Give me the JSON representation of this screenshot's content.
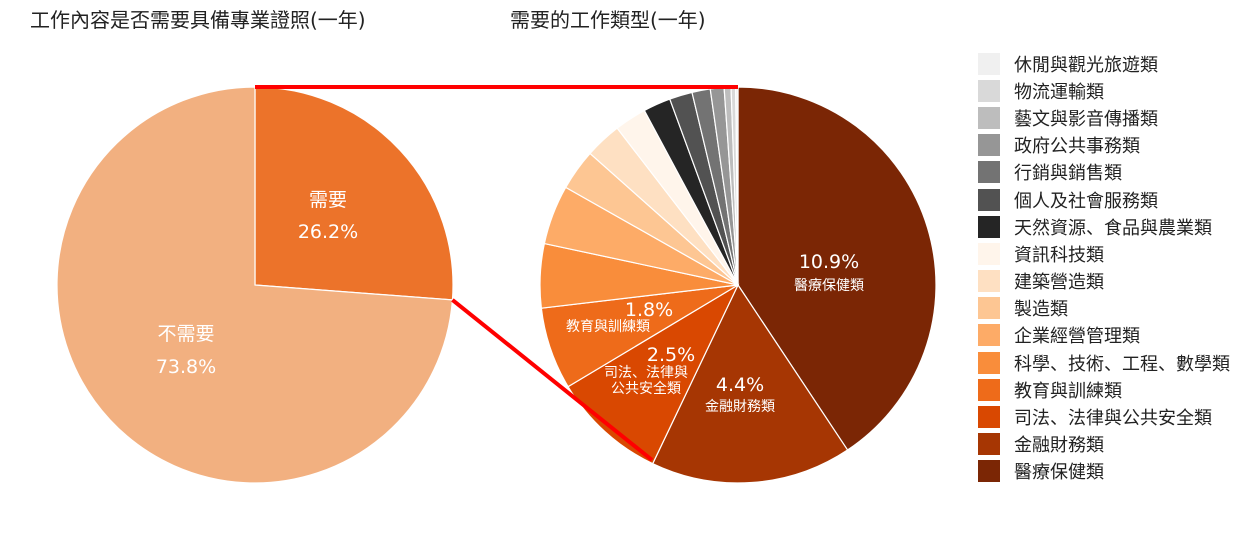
{
  "chart_data": [
    {
      "type": "pie",
      "title": "工作內容是否需要具備專業證照(一年)",
      "slices": [
        {
          "label": "需要",
          "value": 26.2,
          "value_text": "26.2%",
          "color": "#ec732a"
        },
        {
          "label": "不需要",
          "value": 73.8,
          "value_text": "73.8%",
          "color": "#f2b080"
        }
      ]
    },
    {
      "type": "pie",
      "title": "需要的工作類型(一年)",
      "slices": [
        {
          "label": "醫療保健類",
          "value": 10.9,
          "value_text": "10.9%",
          "color": "#7b2605"
        },
        {
          "label": "金融財務類",
          "value": 4.4,
          "value_text": "4.4%",
          "color": "#a63603"
        },
        {
          "label": "司法、法律與公共安全類",
          "value": 2.5,
          "value_text": "2.5%",
          "color": "#d94801"
        },
        {
          "label": "教育與訓練類",
          "value": 1.8,
          "value_text": "1.8%",
          "color": "#ee6b1a"
        },
        {
          "label": "科學、技術、工程、數學類",
          "value": 1.4,
          "color": "#f98d3b"
        },
        {
          "label": "企業經營管理類",
          "value": 1.3,
          "color": "#fdab67"
        },
        {
          "label": "製造類",
          "value": 0.9,
          "color": "#fdc693"
        },
        {
          "label": "建築營造類",
          "value": 0.8,
          "color": "#fee0c2"
        },
        {
          "label": "資訊科技類",
          "value": 0.7,
          "color": "#fff5eb"
        },
        {
          "label": "天然資源、食品與農業類",
          "value": 0.6,
          "color": "#252525"
        },
        {
          "label": "個人及社會服務類",
          "value": 0.5,
          "color": "#525252"
        },
        {
          "label": "行銷與銷售類",
          "value": 0.4,
          "color": "#737373"
        },
        {
          "label": "政府公共事務類",
          "value": 0.3,
          "color": "#969696"
        },
        {
          "label": "藝文與影音傳播類",
          "value": 0.15,
          "color": "#bdbdbd"
        },
        {
          "label": "物流運輸類",
          "value": 0.1,
          "color": "#d9d9d9"
        },
        {
          "label": "休閒與觀光旅遊類",
          "value": 0.05,
          "color": "#f0f0f0"
        }
      ]
    }
  ],
  "legend_order": [
    "休閒與觀光旅遊類",
    "物流運輸類",
    "藝文與影音傳播類",
    "政府公共事務類",
    "行銷與銷售類",
    "個人及社會服務類",
    "天然資源、食品與農業類",
    "資訊科技類",
    "建築營造類",
    "製造類",
    "企業經營管理類",
    "科學、技術、工程、數學類",
    "教育與訓練類",
    "司法、法律與公共安全類",
    "金融財務類",
    "醫療保健類"
  ],
  "connector_color": "#ff0000"
}
